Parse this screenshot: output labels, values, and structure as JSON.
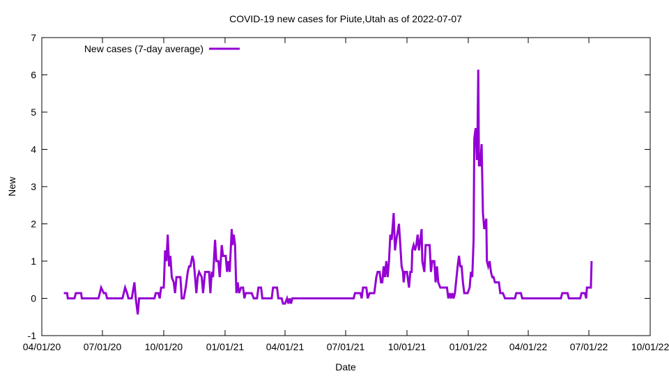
{
  "chart_data": {
    "type": "line",
    "title": "COVID-19 new cases for Piute,Utah as of 2022-07-07",
    "xlabel": "Date",
    "ylabel": "New",
    "xlim": [
      "2020-04-01",
      "2022-10-01"
    ],
    "ylim": [
      -1,
      7
    ],
    "x_ticks": [
      "04/01/20",
      "07/01/20",
      "10/01/20",
      "01/01/21",
      "04/01/21",
      "07/01/21",
      "10/01/21",
      "01/01/22",
      "04/01/22",
      "07/01/22",
      "10/01/22"
    ],
    "x_tick_dates": [
      "2020-04-01",
      "2020-07-01",
      "2020-10-01",
      "2021-01-01",
      "2021-04-01",
      "2021-07-01",
      "2021-10-01",
      "2022-01-01",
      "2022-04-01",
      "2022-07-01",
      "2022-10-01"
    ],
    "y_ticks": [
      "-1",
      "0",
      "1",
      "2",
      "3",
      "4",
      "5",
      "6",
      "7"
    ],
    "grid": false,
    "legend_position": "top-left",
    "series": [
      {
        "name": "New cases (7-day average)",
        "color": "#9400d3",
        "points": [
          [
            "2020-05-04",
            0.14
          ],
          [
            "2020-05-09",
            0.14
          ],
          [
            "2020-05-10",
            0
          ],
          [
            "2020-05-20",
            0
          ],
          [
            "2020-05-22",
            0.14
          ],
          [
            "2020-05-30",
            0.14
          ],
          [
            "2020-05-31",
            0
          ],
          [
            "2020-06-25",
            0
          ],
          [
            "2020-06-27",
            0.14
          ],
          [
            "2020-06-29",
            0.29
          ],
          [
            "2020-07-03",
            0.14
          ],
          [
            "2020-07-06",
            0.14
          ],
          [
            "2020-07-08",
            0
          ],
          [
            "2020-07-31",
            0
          ],
          [
            "2020-08-02",
            0.14
          ],
          [
            "2020-08-04",
            0.29
          ],
          [
            "2020-08-07",
            0.14
          ],
          [
            "2020-08-09",
            0
          ],
          [
            "2020-08-14",
            0
          ],
          [
            "2020-08-18",
            0.43
          ],
          [
            "2020-08-20",
            0
          ],
          [
            "2020-08-23",
            -0.43
          ],
          [
            "2020-08-25",
            0
          ],
          [
            "2020-09-17",
            0
          ],
          [
            "2020-09-19",
            0.14
          ],
          [
            "2020-09-23",
            0.14
          ],
          [
            "2020-09-25",
            0
          ],
          [
            "2020-09-27",
            0.29
          ],
          [
            "2020-10-01",
            0.29
          ],
          [
            "2020-10-03",
            1.29
          ],
          [
            "2020-10-05",
            1.0
          ],
          [
            "2020-10-07",
            1.71
          ],
          [
            "2020-10-09",
            0.86
          ],
          [
            "2020-10-11",
            1.14
          ],
          [
            "2020-10-13",
            0.57
          ],
          [
            "2020-10-16",
            0.43
          ],
          [
            "2020-10-18",
            0.14
          ],
          [
            "2020-10-20",
            0.57
          ],
          [
            "2020-10-26",
            0.57
          ],
          [
            "2020-10-28",
            0
          ],
          [
            "2020-10-31",
            0
          ],
          [
            "2020-11-03",
            0.29
          ],
          [
            "2020-11-06",
            0.71
          ],
          [
            "2020-11-08",
            0.86
          ],
          [
            "2020-11-10",
            0.86
          ],
          [
            "2020-11-13",
            1.14
          ],
          [
            "2020-11-15",
            1.0
          ],
          [
            "2020-11-17",
            0.57
          ],
          [
            "2020-11-19",
            0.14
          ],
          [
            "2020-11-21",
            0.57
          ],
          [
            "2020-11-23",
            0.71
          ],
          [
            "2020-11-27",
            0.57
          ],
          [
            "2020-11-29",
            0.14
          ],
          [
            "2020-12-02",
            0.71
          ],
          [
            "2020-12-08",
            0.71
          ],
          [
            "2020-12-10",
            0.14
          ],
          [
            "2020-12-12",
            0.71
          ],
          [
            "2020-12-14",
            0.57
          ],
          [
            "2020-12-17",
            1.57
          ],
          [
            "2020-12-19",
            1.0
          ],
          [
            "2020-12-22",
            1.0
          ],
          [
            "2020-12-24",
            0.57
          ],
          [
            "2020-12-27",
            1.43
          ],
          [
            "2020-12-29",
            1.14
          ],
          [
            "2021-01-02",
            1.14
          ],
          [
            "2021-01-04",
            0.71
          ],
          [
            "2021-01-06",
            1.0
          ],
          [
            "2021-01-08",
            0.71
          ],
          [
            "2021-01-11",
            1.86
          ],
          [
            "2021-01-12",
            1.43
          ],
          [
            "2021-01-14",
            1.71
          ],
          [
            "2021-01-16",
            1.43
          ],
          [
            "2021-01-18",
            0.14
          ],
          [
            "2021-01-20",
            0.43
          ],
          [
            "2021-01-22",
            0.14
          ],
          [
            "2021-01-25",
            0.29
          ],
          [
            "2021-01-28",
            0.29
          ],
          [
            "2021-01-30",
            0
          ],
          [
            "2021-02-01",
            0.14
          ],
          [
            "2021-02-10",
            0.14
          ],
          [
            "2021-02-13",
            0
          ],
          [
            "2021-02-18",
            0
          ],
          [
            "2021-02-20",
            0.29
          ],
          [
            "2021-02-24",
            0.29
          ],
          [
            "2021-02-26",
            0
          ],
          [
            "2021-03-12",
            0
          ],
          [
            "2021-03-14",
            0.29
          ],
          [
            "2021-03-20",
            0.29
          ],
          [
            "2021-03-22",
            0
          ],
          [
            "2021-03-27",
            0
          ],
          [
            "2021-03-29",
            -0.14
          ],
          [
            "2021-04-01",
            -0.14
          ],
          [
            "2021-04-04",
            0
          ],
          [
            "2021-04-06",
            -0.14
          ],
          [
            "2021-04-08",
            0
          ],
          [
            "2021-04-10",
            -0.14
          ],
          [
            "2021-04-12",
            0
          ],
          [
            "2021-07-13",
            0
          ],
          [
            "2021-07-15",
            0.14
          ],
          [
            "2021-07-23",
            0.14
          ],
          [
            "2021-07-25",
            0
          ],
          [
            "2021-07-27",
            0.29
          ],
          [
            "2021-08-01",
            0.29
          ],
          [
            "2021-08-03",
            0
          ],
          [
            "2021-08-06",
            0.14
          ],
          [
            "2021-08-13",
            0.14
          ],
          [
            "2021-08-16",
            0.57
          ],
          [
            "2021-08-18",
            0.71
          ],
          [
            "2021-08-21",
            0.71
          ],
          [
            "2021-08-23",
            0.43
          ],
          [
            "2021-08-25",
            0.43
          ],
          [
            "2021-08-27",
            0.86
          ],
          [
            "2021-08-29",
            0.57
          ],
          [
            "2021-08-31",
            1.0
          ],
          [
            "2021-09-02",
            0.57
          ],
          [
            "2021-09-04",
            1.0
          ],
          [
            "2021-09-06",
            1.71
          ],
          [
            "2021-09-08",
            1.57
          ],
          [
            "2021-09-11",
            2.29
          ],
          [
            "2021-09-13",
            1.29
          ],
          [
            "2021-09-15",
            1.57
          ],
          [
            "2021-09-19",
            2.0
          ],
          [
            "2021-09-21",
            1.43
          ],
          [
            "2021-09-23",
            0.86
          ],
          [
            "2021-09-25",
            0.71
          ],
          [
            "2021-09-26",
            0.43
          ],
          [
            "2021-09-28",
            0.71
          ],
          [
            "2021-10-01",
            0.71
          ],
          [
            "2021-10-04",
            0.29
          ],
          [
            "2021-10-06",
            0.71
          ],
          [
            "2021-10-08",
            0.71
          ],
          [
            "2021-10-09",
            1.29
          ],
          [
            "2021-10-11",
            1.43
          ],
          [
            "2021-10-13",
            1.29
          ],
          [
            "2021-10-15",
            1.43
          ],
          [
            "2021-10-17",
            1.71
          ],
          [
            "2021-10-19",
            1.29
          ],
          [
            "2021-10-21",
            1.57
          ],
          [
            "2021-10-23",
            1.86
          ],
          [
            "2021-10-24",
            1.0
          ],
          [
            "2021-10-27",
            0.71
          ],
          [
            "2021-10-29",
            1.43
          ],
          [
            "2021-11-01",
            1.43
          ],
          [
            "2021-11-04",
            1.43
          ],
          [
            "2021-11-06",
            0.71
          ],
          [
            "2021-11-08",
            1.0
          ],
          [
            "2021-11-11",
            1.0
          ],
          [
            "2021-11-13",
            0.43
          ],
          [
            "2021-11-15",
            0.86
          ],
          [
            "2021-11-17",
            0.43
          ],
          [
            "2021-11-20",
            0.29
          ],
          [
            "2021-11-24",
            0.29
          ],
          [
            "2021-11-30",
            0.29
          ],
          [
            "2021-12-02",
            0
          ],
          [
            "2021-12-04",
            0.14
          ],
          [
            "2021-12-06",
            0
          ],
          [
            "2021-12-08",
            0.14
          ],
          [
            "2021-12-10",
            0
          ],
          [
            "2021-12-12",
            0.14
          ],
          [
            "2021-12-16",
            0.86
          ],
          [
            "2021-12-18",
            1.14
          ],
          [
            "2021-12-20",
            0.86
          ],
          [
            "2021-12-22",
            0.86
          ],
          [
            "2021-12-24",
            0.43
          ],
          [
            "2021-12-26",
            0.14
          ],
          [
            "2021-12-31",
            0.14
          ],
          [
            "2022-01-03",
            0.29
          ],
          [
            "2022-01-05",
            0.71
          ],
          [
            "2022-01-07",
            0.57
          ],
          [
            "2022-01-09",
            1.57
          ],
          [
            "2022-01-10",
            4.29
          ],
          [
            "2022-01-12",
            4.57
          ],
          [
            "2022-01-14",
            3.71
          ],
          [
            "2022-01-15",
            4.57
          ],
          [
            "2022-01-16",
            6.14
          ],
          [
            "2022-01-17",
            3.57
          ],
          [
            "2022-01-19",
            3.57
          ],
          [
            "2022-01-21",
            4.14
          ],
          [
            "2022-01-23",
            2.29
          ],
          [
            "2022-01-25",
            1.86
          ],
          [
            "2022-01-28",
            2.14
          ],
          [
            "2022-01-29",
            1.0
          ],
          [
            "2022-01-31",
            0.86
          ],
          [
            "2022-02-02",
            1.0
          ],
          [
            "2022-02-04",
            0.71
          ],
          [
            "2022-02-06",
            0.57
          ],
          [
            "2022-02-08",
            0.57
          ],
          [
            "2022-02-10",
            0.43
          ],
          [
            "2022-02-16",
            0.43
          ],
          [
            "2022-02-18",
            0.14
          ],
          [
            "2022-02-22",
            0.14
          ],
          [
            "2022-02-25",
            0
          ],
          [
            "2022-03-12",
            0
          ],
          [
            "2022-03-14",
            0.14
          ],
          [
            "2022-03-21",
            0.14
          ],
          [
            "2022-03-23",
            0
          ],
          [
            "2022-05-20",
            0
          ],
          [
            "2022-05-22",
            0.14
          ],
          [
            "2022-05-30",
            0.14
          ],
          [
            "2022-06-01",
            0
          ],
          [
            "2022-06-18",
            0
          ],
          [
            "2022-06-20",
            0.14
          ],
          [
            "2022-06-25",
            0.14
          ],
          [
            "2022-06-27",
            0
          ],
          [
            "2022-06-28",
            0.29
          ],
          [
            "2022-07-04",
            0.29
          ],
          [
            "2022-07-05",
            1.0
          ]
        ]
      }
    ]
  }
}
